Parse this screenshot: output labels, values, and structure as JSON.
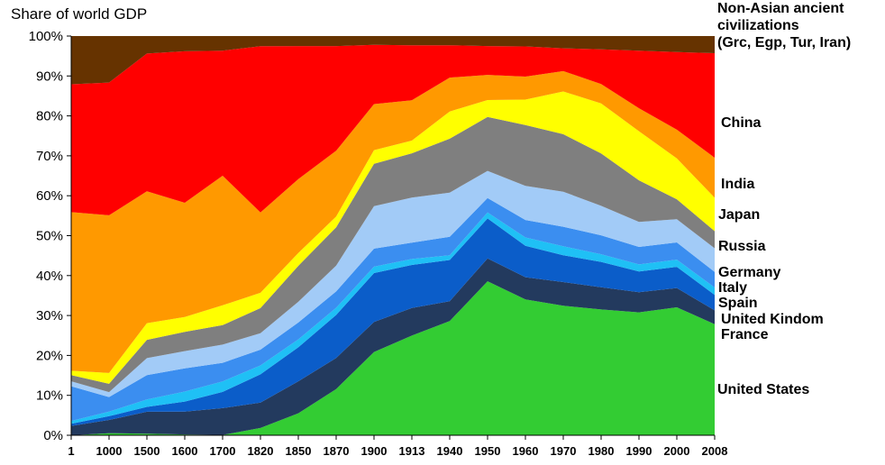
{
  "chart_data": {
    "type": "area",
    "stacked": true,
    "normalized": true,
    "title": "",
    "ylabel": "Share of world GDP",
    "ylim": [
      0,
      100
    ],
    "yticks": [
      "0%",
      "10%",
      "20%",
      "30%",
      "40%",
      "50%",
      "60%",
      "70%",
      "80%",
      "90%",
      "100%"
    ],
    "categories": [
      "1",
      "1000",
      "1500",
      "1600",
      "1700",
      "1820",
      "1850",
      "1870",
      "1900",
      "1913",
      "1940",
      "1950",
      "1960",
      "1970",
      "1980",
      "1990",
      "2000",
      "2008"
    ],
    "series": [
      {
        "name": "United States",
        "color": "#33cc33",
        "values": [
          0.0,
          0.5,
          0.4,
          0.2,
          0.1,
          1.8,
          5.5,
          11.6,
          20.8,
          25.0,
          28.6,
          38.5,
          34.2,
          31.8,
          31.2,
          31.0,
          32.0,
          27.2
        ]
      },
      {
        "name": "France",
        "color": "#233a5e",
        "values": [
          2.3,
          3.2,
          5.4,
          5.7,
          6.6,
          6.3,
          8.0,
          7.8,
          7.5,
          6.9,
          5.0,
          5.7,
          5.6,
          5.8,
          5.5,
          5.1,
          4.8,
          3.4
        ]
      },
      {
        "name": "United Kindom",
        "color": "#0b5dc9",
        "values": [
          0.5,
          0.9,
          1.2,
          2.5,
          4.0,
          7.0,
          8.5,
          10.8,
          12.2,
          10.8,
          10.3,
          10.0,
          7.9,
          6.6,
          6.3,
          5.2,
          5.3,
          3.8
        ]
      },
      {
        "name": "Spain",
        "color": "#1fc0f5",
        "values": [
          0.7,
          1.1,
          1.8,
          2.5,
          2.6,
          2.2,
          2.0,
          1.8,
          1.6,
          1.5,
          1.2,
          1.5,
          2.1,
          2.2,
          1.9,
          1.8,
          1.8,
          1.8
        ]
      },
      {
        "name": "Italy",
        "color": "#3b8ef0",
        "values": [
          8.5,
          3.5,
          6.0,
          5.8,
          4.6,
          3.9,
          4.2,
          4.1,
          4.5,
          4.1,
          4.6,
          3.6,
          4.4,
          4.8,
          4.7,
          4.4,
          4.3,
          3.8
        ]
      },
      {
        "name": "Germany",
        "color": "#a2cbf7",
        "values": [
          1.2,
          1.2,
          4.2,
          4.3,
          4.5,
          4.1,
          5.2,
          6.5,
          10.6,
          11.3,
          11.1,
          6.8,
          8.6,
          8.6,
          7.3,
          6.3,
          5.8,
          5.8
        ]
      },
      {
        "name": "Russia",
        "color": "#7f7f7f",
        "values": [
          1.5,
          2.0,
          4.5,
          4.8,
          4.8,
          6.2,
          9.0,
          9.6,
          10.6,
          11.1,
          13.5,
          13.5,
          15.3,
          14.1,
          13.0,
          10.5,
          5.0,
          4.2
        ]
      },
      {
        "name": "Japan",
        "color": "#ffff00",
        "values": [
          1.1,
          2.6,
          4.1,
          3.7,
          4.9,
          3.8,
          3.2,
          2.7,
          3.4,
          3.2,
          6.8,
          4.2,
          6.4,
          10.5,
          12.4,
          12.4,
          10.2,
          8.2
        ]
      },
      {
        "name": "India",
        "color": "#ff9900",
        "values": [
          38.8,
          38.0,
          32.5,
          28.5,
          32.0,
          19.9,
          18.5,
          16.5,
          11.5,
          10.1,
          8.5,
          6.3,
          5.8,
          5.0,
          4.8,
          5.8,
          7.2,
          9.8
        ]
      },
      {
        "name": "China",
        "color": "#ff0000",
        "values": [
          31.3,
          32.0,
          33.9,
          37.8,
          30.9,
          41.2,
          33.3,
          26.3,
          14.8,
          13.8,
          8.1,
          7.2,
          7.6,
          5.6,
          8.6,
          14.5,
          19.4,
          25.6
        ]
      },
      {
        "name": "Non-Asian ancient civilizations (Grc, Egp, Tur, Iran)",
        "color": "#663300",
        "values": [
          11.8,
          11.2,
          4.3,
          3.8,
          3.6,
          2.5,
          2.5,
          2.5,
          2.2,
          2.3,
          2.3,
          2.5,
          2.6,
          3.0,
          3.3,
          3.7,
          4.0,
          4.2
        ]
      }
    ],
    "legend_placement": "right",
    "legend_labels": [
      {
        "key": "nonasian",
        "lines": [
          "Non-Asian ancient",
          "civilizations",
          "(Grc, Egp, Tur, Iran)"
        ]
      },
      {
        "key": "china",
        "lines": [
          "China"
        ]
      },
      {
        "key": "india",
        "lines": [
          "India"
        ]
      },
      {
        "key": "japan",
        "lines": [
          "Japan"
        ]
      },
      {
        "key": "russia",
        "lines": [
          "Russia"
        ]
      },
      {
        "key": "germany",
        "lines": [
          "Germany"
        ]
      },
      {
        "key": "italy",
        "lines": [
          "Italy"
        ]
      },
      {
        "key": "spain",
        "lines": [
          "Spain"
        ]
      },
      {
        "key": "uk",
        "lines": [
          "United Kindom"
        ]
      },
      {
        "key": "france",
        "lines": [
          "France"
        ]
      },
      {
        "key": "us",
        "lines": [
          "United States"
        ]
      }
    ],
    "grid": false
  }
}
